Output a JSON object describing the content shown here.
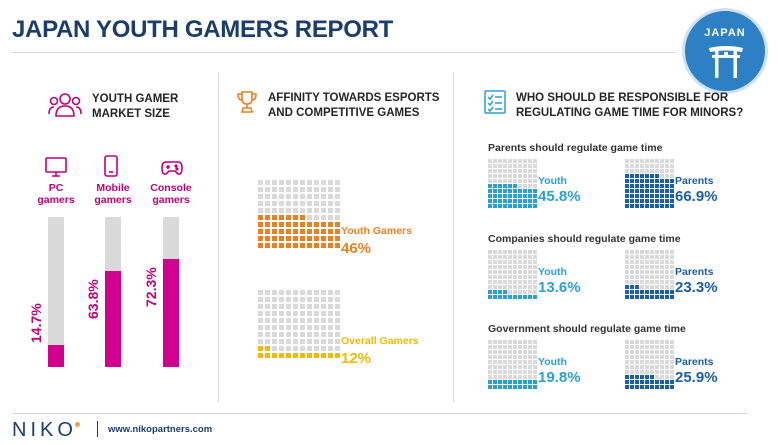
{
  "title": "JAPAN YOUTH GAMERS REPORT",
  "badge": {
    "label": "JAPAN"
  },
  "colors": {
    "navy": "#1b3d6e",
    "magenta": "#d1008e",
    "orange": "#e98122",
    "yellow": "#f0b90b",
    "blue": "#2a9fd6",
    "darkblue": "#1b5ea8",
    "grey": "#d9d9d9"
  },
  "market": {
    "title_line1": "YOUTH GAMER",
    "title_line2": "MARKET SIZE"
  },
  "affinity": {
    "title_line1": "AFFINITY TOWARDS ESPORTS",
    "title_line2": "AND COMPETITIVE GAMES"
  },
  "regulation": {
    "title_line1": "WHO SHOULD BE RESPONSIBLE FOR",
    "title_line2": "REGULATING GAME TIME FOR MINORS?"
  },
  "chart_data": [
    {
      "type": "bar",
      "title": "YOUTH GAMER MARKET SIZE",
      "categories": [
        "PC gamers",
        "Mobile gamers",
        "Console gamers"
      ],
      "category_lines": [
        [
          "PC",
          "gamers"
        ],
        [
          "Mobile",
          "gamers"
        ],
        [
          "Console",
          "gamers"
        ]
      ],
      "values": [
        14.7,
        63.8,
        72.3
      ],
      "value_labels": [
        "14.7%",
        "63.8%",
        "72.3%"
      ],
      "ylim": [
        0,
        100
      ],
      "unit": "%"
    },
    {
      "type": "waffle",
      "title": "AFFINITY TOWARDS ESPORTS AND COMPETITIVE GAMES",
      "series": [
        {
          "name": "Youth Gamers",
          "value": 46,
          "label": "46%"
        },
        {
          "name": "Overall Gamers",
          "value": 12,
          "label": "12%"
        }
      ],
      "unit": "%"
    },
    {
      "type": "waffle",
      "title": "WHO SHOULD BE RESPONSIBLE FOR REGULATING GAME TIME FOR MINORS?",
      "groups": [
        {
          "question": "Parents should regulate game time",
          "youth_label": "Youth",
          "youth": 45.8,
          "youth_text": "45.8%",
          "parents_label": "Parents",
          "parents": 66.9,
          "parents_text": "66.9%"
        },
        {
          "question": "Companies should regulate game time",
          "youth_label": "Youth",
          "youth": 13.6,
          "youth_text": "13.6%",
          "parents_label": "Parents",
          "parents": 23.3,
          "parents_text": "23.3%"
        },
        {
          "question": "Government should regulate game time",
          "youth_label": "Youth",
          "youth": 19.8,
          "youth_text": "19.8%",
          "parents_label": "Parents",
          "parents": 25.9,
          "parents_text": "25.9%"
        }
      ],
      "unit": "%"
    }
  ],
  "footer": {
    "logo": "NIKO",
    "url": "www.nikopartners.com"
  }
}
